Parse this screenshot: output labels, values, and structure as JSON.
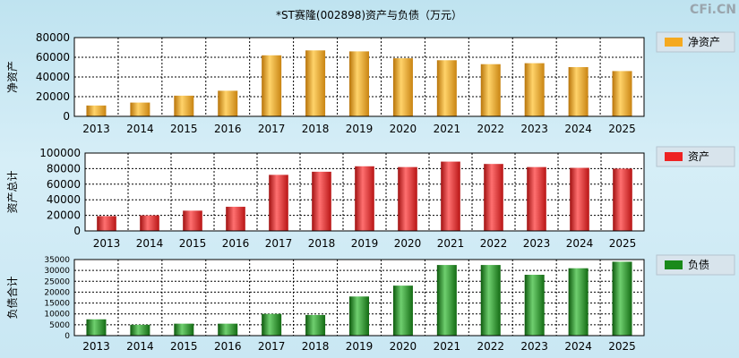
{
  "title": "*ST赛隆(002898)资产与负债（万元）",
  "watermark": "CFi.CN",
  "colors": {
    "net_assets": "#f5a91f",
    "assets": "#ee2222",
    "liabilities": "#1a8a1a",
    "grid": "#000000",
    "plot_bg": "#ffffff"
  },
  "chart_data": [
    {
      "type": "bar",
      "ylabel": "净资产",
      "legend": "净资产",
      "categories": [
        "2013",
        "2014",
        "2015",
        "2016",
        "2017",
        "2018",
        "2019",
        "2020",
        "2021",
        "2022",
        "2023",
        "2024",
        "2025"
      ],
      "values": [
        11000,
        14000,
        21000,
        26000,
        62000,
        67000,
        66000,
        59000,
        57000,
        53000,
        54000,
        50000,
        46000
      ],
      "ylim": [
        0,
        80000
      ],
      "yticks": [
        "0",
        "20000",
        "40000",
        "60000",
        "80000"
      ],
      "grid": true,
      "legend_position": "right"
    },
    {
      "type": "bar",
      "ylabel": "资产总计",
      "legend": "资产",
      "categories": [
        "2013",
        "2014",
        "2015",
        "2016",
        "2017",
        "2018",
        "2019",
        "2020",
        "2021",
        "2022",
        "2023",
        "2024",
        "2025"
      ],
      "values": [
        19000,
        20000,
        26000,
        31000,
        72000,
        76000,
        83000,
        82000,
        89000,
        86000,
        82000,
        81000,
        80000
      ],
      "ylim": [
        0,
        100000
      ],
      "yticks": [
        "0",
        "20000",
        "40000",
        "60000",
        "80000",
        "100000"
      ],
      "grid": true,
      "legend_position": "right"
    },
    {
      "type": "bar",
      "ylabel": "负债合计",
      "legend": "负债",
      "categories": [
        "2013",
        "2014",
        "2015",
        "2016",
        "2017",
        "2018",
        "2019",
        "2020",
        "2021",
        "2022",
        "2023",
        "2024",
        "2025"
      ],
      "values": [
        7500,
        5000,
        5500,
        5500,
        10000,
        9500,
        18000,
        23000,
        32500,
        32500,
        28000,
        31000,
        34000
      ],
      "ylim": [
        0,
        35000
      ],
      "yticks": [
        "0",
        "5000",
        "10000",
        "15000",
        "20000",
        "25000",
        "30000",
        "35000"
      ],
      "grid": true,
      "legend_position": "right"
    }
  ]
}
